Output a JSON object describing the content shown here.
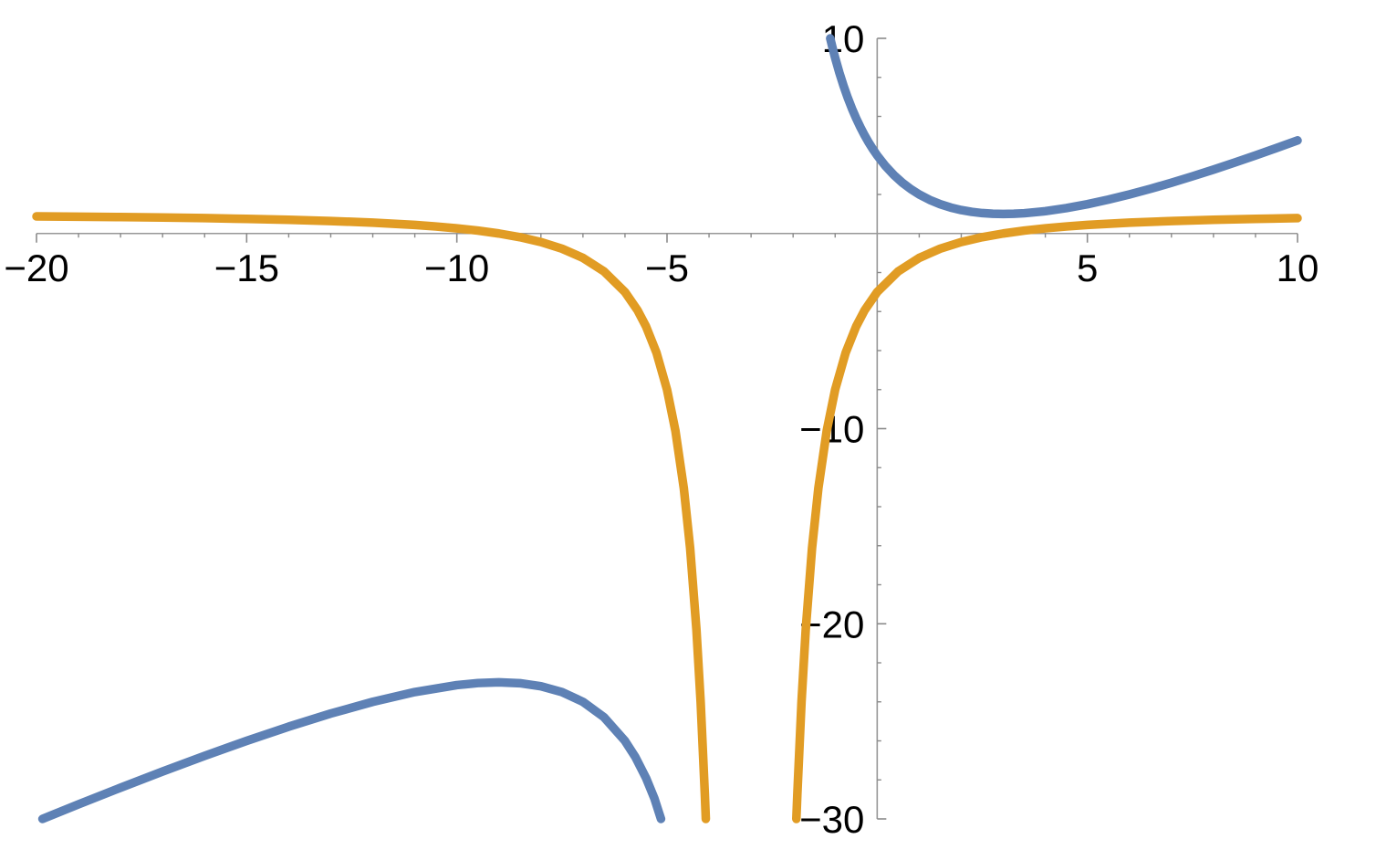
{
  "figure": {
    "background": "#ffffff",
    "axis_color": "#979797",
    "tick_color": "#8a8a8a",
    "label_color": "#000000"
  },
  "chart_data": {
    "type": "line",
    "title": "",
    "xlabel": "",
    "ylabel": "",
    "grid": false,
    "legend": "none",
    "x_range": [
      -20,
      10
    ],
    "y_range": [
      -30,
      10
    ],
    "x_axis": {
      "major_ticks": [
        {
          "value": -20,
          "label": "−20"
        },
        {
          "value": -15,
          "label": "−15"
        },
        {
          "value": -10,
          "label": "−10"
        },
        {
          "value": -5,
          "label": "−5"
        },
        {
          "value": 5,
          "label": "5"
        },
        {
          "value": 10,
          "label": "10"
        }
      ],
      "minor_ticks": [
        -19,
        -18,
        -17,
        -16,
        -14,
        -13,
        -12,
        -11,
        -9,
        -8,
        -7,
        -6,
        -4,
        -3,
        -2,
        -1,
        1,
        2,
        3,
        4,
        6,
        7,
        8,
        9
      ]
    },
    "y_axis": {
      "major_ticks": [
        {
          "value": 10,
          "label": "10"
        },
        {
          "value": -10,
          "label": "−10"
        },
        {
          "value": -20,
          "label": "−20"
        },
        {
          "value": -30,
          "label": "−30"
        }
      ],
      "minor_ticks": [
        8,
        6,
        4,
        2,
        -2,
        -4,
        -6,
        -8,
        -12,
        -14,
        -16,
        -18,
        -22,
        -24,
        -26,
        -28
      ]
    },
    "series": [
      {
        "name": "blue-curve",
        "color": "#5e81b5",
        "stroke_width": 9.5,
        "branches": [
          [
            [
              -19.857,
              -30
            ],
            [
              -19,
              -29.25
            ],
            [
              -18,
              -28.4
            ],
            [
              -17,
              -27.571
            ],
            [
              -16,
              -26.769
            ],
            [
              -15,
              -26
            ],
            [
              -14,
              -25.273
            ],
            [
              -13,
              -24.6
            ],
            [
              -12,
              -24
            ],
            [
              -11,
              -23.5
            ],
            [
              -10,
              -23.143
            ],
            [
              -9.5,
              -23.038
            ],
            [
              -9,
              -23
            ],
            [
              -8.5,
              -23.045
            ],
            [
              -8,
              -23.2
            ],
            [
              -7.5,
              -23.5
            ],
            [
              -7,
              -24
            ],
            [
              -6.5,
              -24.786
            ],
            [
              -6,
              -26
            ],
            [
              -5.75,
              -26.841
            ],
            [
              -5.5,
              -27.9
            ],
            [
              -5.3,
              -28.952
            ],
            [
              -5.143,
              -30
            ]
          ],
          [
            [
              -1.117,
              10
            ],
            [
              -1.05,
              9.41
            ],
            [
              -1,
              9
            ],
            [
              -0.9,
              8.243
            ],
            [
              -0.8,
              7.564
            ],
            [
              -0.7,
              6.952
            ],
            [
              -0.6,
              6.4
            ],
            [
              -0.5,
              5.9
            ],
            [
              -0.4,
              5.446
            ],
            [
              -0.3,
              5.033
            ],
            [
              -0.2,
              4.657
            ],
            [
              -0.1,
              4.314
            ],
            [
              0,
              4
            ],
            [
              0.2,
              3.45
            ],
            [
              0.4,
              2.988
            ],
            [
              0.6,
              2.6
            ],
            [
              0.8,
              2.274
            ],
            [
              1,
              2
            ],
            [
              1.25,
              1.721
            ],
            [
              1.5,
              1.5
            ],
            [
              1.75,
              1.329
            ],
            [
              2,
              1.2
            ],
            [
              2.25,
              1.107
            ],
            [
              2.5,
              1.045
            ],
            [
              2.75,
              1.011
            ],
            [
              3,
              1
            ],
            [
              3.25,
              1.01
            ],
            [
              3.5,
              1.038
            ],
            [
              4,
              1.143
            ],
            [
              4.5,
              1.3
            ],
            [
              5,
              1.5
            ],
            [
              5.5,
              1.735
            ],
            [
              6,
              2
            ],
            [
              6.5,
              2.289
            ],
            [
              7,
              2.6
            ],
            [
              7.5,
              2.929
            ],
            [
              8,
              3.273
            ],
            [
              8.5,
              3.63
            ],
            [
              9,
              4
            ],
            [
              9.5,
              4.38
            ],
            [
              10,
              4.769
            ]
          ]
        ]
      },
      {
        "name": "orange-curve",
        "color": "#e19c24",
        "stroke_width": 9.5,
        "branches": [
          [
            [
              -20,
              0.875
            ],
            [
              -19,
              0.859
            ],
            [
              -18,
              0.84
            ],
            [
              -17,
              0.816
            ],
            [
              -16,
              0.787
            ],
            [
              -15,
              0.75
            ],
            [
              -14,
              0.702
            ],
            [
              -13,
              0.64
            ],
            [
              -12,
              0.556
            ],
            [
              -11,
              0.438
            ],
            [
              -10.5,
              0.36
            ],
            [
              -10,
              0.265
            ],
            [
              -9.5,
              0.148
            ],
            [
              -9,
              0
            ],
            [
              -8.5,
              -0.19
            ],
            [
              -8,
              -0.44
            ],
            [
              -7.5,
              -0.778
            ],
            [
              -7,
              -1.25
            ],
            [
              -6.5,
              -1.939
            ],
            [
              -6,
              -3
            ],
            [
              -5.7,
              -3.938
            ],
            [
              -5.5,
              -4.76
            ],
            [
              -5.25,
              -6.111
            ],
            [
              -5,
              -8
            ],
            [
              -4.8,
              -10.111
            ],
            [
              -4.6,
              -13.063
            ],
            [
              -4.45,
              -16.122
            ],
            [
              -4.3,
              -20.302
            ],
            [
              -4.2,
              -24
            ],
            [
              -4.1,
              -28.752
            ],
            [
              -4.077,
              -30
            ]
          ],
          [
            [
              -1.923,
              -30
            ],
            [
              -1.9,
              -28.752
            ],
            [
              -1.8,
              -24
            ],
            [
              -1.7,
              -20.302
            ],
            [
              -1.55,
              -16.122
            ],
            [
              -1.4,
              -13.063
            ],
            [
              -1.2,
              -10.111
            ],
            [
              -1,
              -8
            ],
            [
              -0.75,
              -6.111
            ],
            [
              -0.5,
              -4.76
            ],
            [
              -0.3,
              -3.938
            ],
            [
              0,
              -3
            ],
            [
              0.5,
              -1.939
            ],
            [
              1,
              -1.25
            ],
            [
              1.5,
              -0.778
            ],
            [
              2,
              -0.44
            ],
            [
              2.5,
              -0.19
            ],
            [
              3,
              0
            ],
            [
              3.5,
              0.148
            ],
            [
              4,
              0.265
            ],
            [
              4.5,
              0.36
            ],
            [
              5,
              0.438
            ],
            [
              6,
              0.556
            ],
            [
              7,
              0.64
            ],
            [
              8,
              0.702
            ],
            [
              9,
              0.75
            ],
            [
              10,
              0.787
            ]
          ]
        ]
      }
    ]
  }
}
